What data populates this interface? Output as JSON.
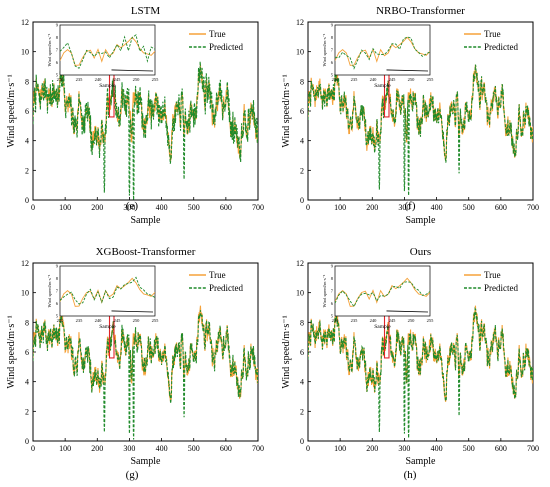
{
  "colors": {
    "true_line": "#f5a23a",
    "pred_line": "#1f8a2a",
    "zoom_box": "#e0242a"
  },
  "chart_data": [
    {
      "type": "line",
      "panel_label": "(e)",
      "title": "LSTM",
      "xlabel": "Sample",
      "ylabel": "Wind speed/m·s⁻¹",
      "xlim": [
        0,
        700
      ],
      "ylim": [
        0,
        12
      ],
      "xticks": [
        0,
        100,
        200,
        300,
        400,
        500,
        600,
        700
      ],
      "yticks": [
        0,
        2,
        4,
        6,
        8,
        10,
        12
      ],
      "legend": {
        "position": "top-right",
        "entries": [
          "True",
          "Predicted"
        ]
      },
      "zoom_region": {
        "x": [
          238,
          252
        ],
        "y": [
          5.6,
          8.7
        ]
      },
      "inset": {
        "xticks": [
          230,
          235,
          240,
          245,
          250,
          255
        ],
        "yticks": [
          5,
          6,
          7,
          8,
          9
        ],
        "xlabel": "Sample",
        "ylabel": "Wind speed/m·s⁻¹"
      },
      "seed": 11,
      "noise": 1.25,
      "dips": [
        [
          300,
          0.3
        ],
        [
          313,
          0.0
        ],
        [
          222,
          0.5
        ],
        [
          470,
          1.4
        ]
      ]
    },
    {
      "type": "line",
      "panel_label": "(f)",
      "title": "NRBO-Transformer",
      "xlabel": "Sample",
      "ylabel": "Wind speed/m·s⁻¹",
      "xlim": [
        0,
        700
      ],
      "ylim": [
        0,
        12
      ],
      "xticks": [
        0,
        100,
        200,
        300,
        400,
        500,
        600,
        700
      ],
      "yticks": [
        0,
        2,
        4,
        6,
        8,
        10,
        12
      ],
      "legend": {
        "position": "top-right",
        "entries": [
          "True",
          "Predicted"
        ]
      },
      "zoom_region": {
        "x": [
          238,
          252
        ],
        "y": [
          5.6,
          8.7
        ]
      },
      "inset": {
        "xticks": [
          230,
          235,
          240,
          245,
          250,
          255
        ],
        "yticks": [
          5,
          6,
          7,
          8,
          9
        ],
        "xlabel": "Sample",
        "ylabel": "Wind speed/m·s⁻¹"
      },
      "seed": 23,
      "noise": 0.55,
      "dips": [
        [
          300,
          0.6
        ],
        [
          313,
          0.3
        ],
        [
          222,
          0.7
        ],
        [
          470,
          1.8
        ]
      ]
    },
    {
      "type": "line",
      "panel_label": "(g)",
      "title": "XGBoost-Transformer",
      "xlabel": "Sample",
      "ylabel": "Wind speed/m·s⁻¹",
      "xlim": [
        0,
        700
      ],
      "ylim": [
        0,
        12
      ],
      "xticks": [
        0,
        100,
        200,
        300,
        400,
        500,
        600,
        700
      ],
      "yticks": [
        0,
        2,
        4,
        6,
        8,
        10,
        12
      ],
      "legend": {
        "position": "top-right",
        "entries": [
          "True",
          "Predicted"
        ]
      },
      "zoom_region": {
        "x": [
          238,
          252
        ],
        "y": [
          5.6,
          8.7
        ]
      },
      "inset": {
        "xticks": [
          230,
          235,
          240,
          245,
          250,
          255
        ],
        "yticks": [
          5,
          6,
          7,
          8,
          9
        ],
        "xlabel": "Sample",
        "ylabel": "Wind speed/m·s⁻¹"
      },
      "seed": 37,
      "noise": 0.6,
      "dips": [
        [
          300,
          0.5
        ],
        [
          313,
          0.1
        ],
        [
          222,
          0.6
        ],
        [
          470,
          1.6
        ]
      ]
    },
    {
      "type": "line",
      "panel_label": "(h)",
      "title": "Ours",
      "xlabel": "Sample",
      "ylabel": "Wind speed/m·s⁻¹",
      "xlim": [
        0,
        700
      ],
      "ylim": [
        0,
        12
      ],
      "xticks": [
        0,
        100,
        200,
        300,
        400,
        500,
        600,
        700
      ],
      "yticks": [
        0,
        2,
        4,
        6,
        8,
        10,
        12
      ],
      "legend": {
        "position": "top-right",
        "entries": [
          "True",
          "Predicted"
        ]
      },
      "zoom_region": {
        "x": [
          238,
          252
        ],
        "y": [
          5.6,
          8.7
        ]
      },
      "inset": {
        "xticks": [
          230,
          235,
          240,
          245,
          250,
          255
        ],
        "yticks": [
          5,
          6,
          7,
          8,
          9
        ],
        "xlabel": "Sample",
        "ylabel": "Wind speed/m·s⁻¹"
      },
      "seed": 53,
      "noise": 0.35,
      "dips": [
        [
          300,
          0.5
        ],
        [
          313,
          0.2
        ],
        [
          222,
          0.6
        ],
        [
          470,
          1.7
        ]
      ]
    }
  ]
}
